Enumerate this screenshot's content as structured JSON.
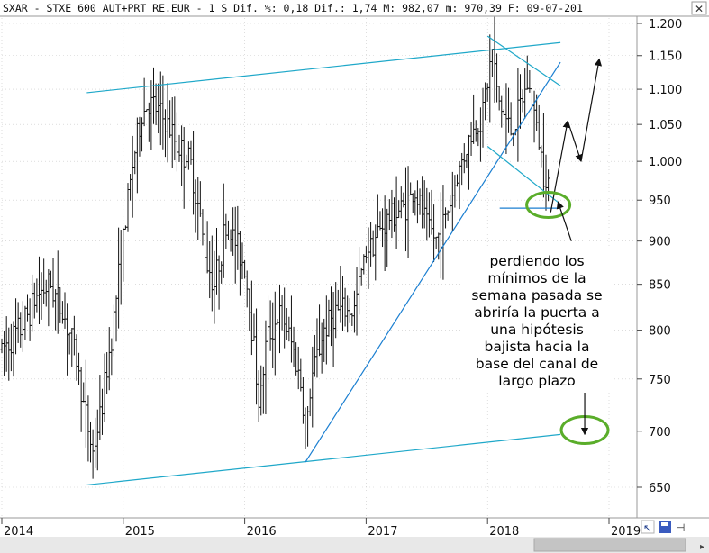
{
  "header": {
    "ticker_text": "SXAR - STXE 600 AUT+PRT RE.EUR -  1 S Dif. %: 0,18 Dif.: 1,74 M: 982,07 m: 970,39 F: 09-07-201"
  },
  "chart_data": {
    "type": "candlestick",
    "title": "SXAR - STXE 600 AUT+PRT RE.EUR",
    "period": "1 S",
    "stats": {
      "dif_pct": "0,18",
      "dif": "1,74",
      "max": "982,07",
      "min": "970,39",
      "date": "09-07-201"
    },
    "y_scale": "log",
    "ylim": [
      620,
      1220
    ],
    "y_ticks": [
      "1.200",
      "1.150",
      "1.100",
      "1.050",
      "1.000",
      "950",
      "900",
      "850",
      "800",
      "750",
      "700",
      "650"
    ],
    "y_tick_values": [
      1200,
      1150,
      1100,
      1050,
      1000,
      950,
      900,
      850,
      800,
      750,
      700,
      650
    ],
    "x_ticks": [
      "2014",
      "2015",
      "2016",
      "2017",
      "2018",
      "2019"
    ],
    "x_tick_dates": [
      2014.0,
      2015.0,
      2016.0,
      2017.0,
      2018.0,
      2019.0
    ],
    "xlim": [
      2014.0,
      2019.25
    ],
    "anchors": [
      [
        2014.0,
        780
      ],
      [
        2014.15,
        800
      ],
      [
        2014.3,
        840
      ],
      [
        2014.4,
        850
      ],
      [
        2014.5,
        820
      ],
      [
        2014.6,
        780
      ],
      [
        2014.68,
        720
      ],
      [
        2014.75,
        680
      ],
      [
        2014.82,
        720
      ],
      [
        2014.9,
        790
      ],
      [
        2015.0,
        900
      ],
      [
        2015.08,
        1000
      ],
      [
        2015.15,
        1060
      ],
      [
        2015.2,
        1080
      ],
      [
        2015.28,
        1070
      ],
      [
        2015.36,
        1050
      ],
      [
        2015.45,
        1020
      ],
      [
        2015.55,
        1000
      ],
      [
        2015.62,
        940
      ],
      [
        2015.68,
        880
      ],
      [
        2015.75,
        850
      ],
      [
        2015.85,
        920
      ],
      [
        2015.92,
        900
      ],
      [
        2016.0,
        870
      ],
      [
        2016.08,
        780
      ],
      [
        2016.12,
        720
      ],
      [
        2016.18,
        790
      ],
      [
        2016.3,
        820
      ],
      [
        2016.4,
        780
      ],
      [
        2016.47,
        740
      ],
      [
        2016.5,
        690
      ],
      [
        2016.55,
        750
      ],
      [
        2016.65,
        800
      ],
      [
        2016.75,
        820
      ],
      [
        2016.9,
        820
      ],
      [
        2017.0,
        890
      ],
      [
        2017.1,
        910
      ],
      [
        2017.2,
        930
      ],
      [
        2017.3,
        940
      ],
      [
        2017.4,
        960
      ],
      [
        2017.5,
        920
      ],
      [
        2017.58,
        900
      ],
      [
        2017.66,
        930
      ],
      [
        2017.75,
        980
      ],
      [
        2017.85,
        1030
      ],
      [
        2017.95,
        1060
      ],
      [
        2018.0,
        1110
      ],
      [
        2018.04,
        1160
      ],
      [
        2018.08,
        1090
      ],
      [
        2018.14,
        1060
      ],
      [
        2018.2,
        1040
      ],
      [
        2018.28,
        1080
      ],
      [
        2018.33,
        1110
      ],
      [
        2018.38,
        1070
      ],
      [
        2018.42,
        1030
      ],
      [
        2018.46,
        990
      ],
      [
        2018.5,
        975
      ]
    ],
    "trendlines": [
      {
        "name": "upper-channel-line",
        "from": [
          2014.7,
          1095
        ],
        "to": [
          2018.6,
          1170
        ],
        "color": "#1fa8c9"
      },
      {
        "name": "lower-channel-line",
        "from": [
          2014.7,
          652
        ],
        "to": [
          2018.6,
          697
        ],
        "color": "#1fa8c9"
      },
      {
        "name": "rising-support-line",
        "from": [
          2016.5,
          672
        ],
        "to": [
          2018.6,
          1140
        ],
        "color": "#1b7fd1"
      },
      {
        "name": "wedge-upper-line",
        "from": [
          2018.0,
          1180
        ],
        "to": [
          2018.6,
          1105
        ],
        "color": "#1fa8c9"
      },
      {
        "name": "wedge-lower-line",
        "from": [
          2018.0,
          1020
        ],
        "to": [
          2018.6,
          945
        ],
        "color": "#1fa8c9"
      },
      {
        "name": "weekly-low-line",
        "from": [
          2018.1,
          940
        ],
        "to": [
          2018.6,
          940
        ],
        "color": "#1b7fd1"
      }
    ],
    "annotation": {
      "lines": [
        "perdiendo los",
        "mínimos de la",
        "semana pasada se",
        "abriría la puerta a",
        "una hipótesis",
        "bajista hacia la",
        "base del canal de",
        "largo plazo"
      ]
    }
  },
  "colors": {
    "candle": "#111111",
    "channel": "#1fa8c9",
    "trend": "#1b7fd1",
    "circle": "#5aad2a",
    "grid": "#c8c8c8"
  },
  "toolbar": {
    "close_icon": "close-icon",
    "save_icon": "save-icon",
    "cursor_icon": "cursor-plus-icon",
    "pin_icon": "pin-icon"
  }
}
